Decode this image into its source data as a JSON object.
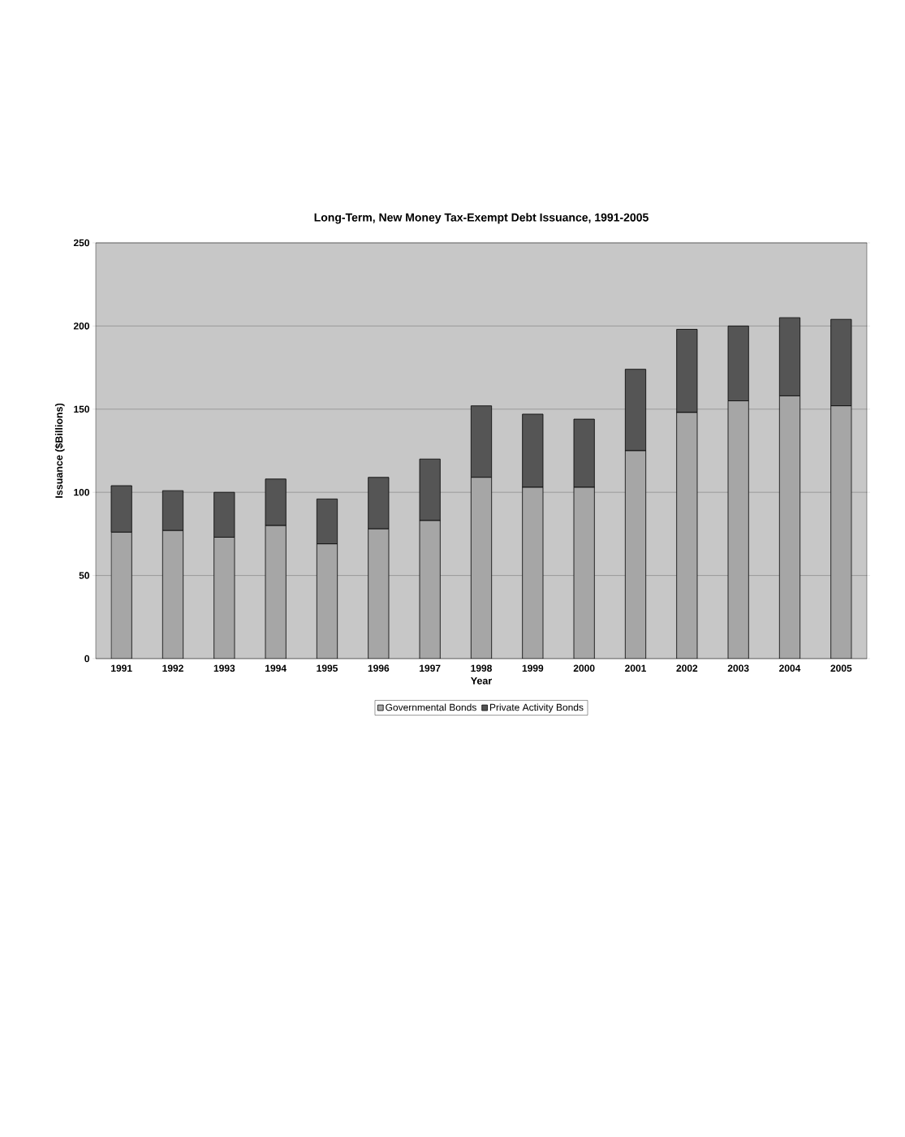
{
  "chart_data": {
    "type": "bar",
    "title": "Long-Term, New Money Tax-Exempt Debt Issuance, 1991-2005",
    "xlabel": "Year",
    "ylabel": "Issuance ($Billions)",
    "categories": [
      "1991",
      "1992",
      "1993",
      "1994",
      "1995",
      "1996",
      "1997",
      "1998",
      "1999",
      "2000",
      "2001",
      "2002",
      "2003",
      "2004",
      "2005"
    ],
    "series": [
      {
        "name": "Governmental Bonds",
        "color": "#a6a6a6",
        "values": [
          76,
          77,
          73,
          80,
          69,
          78,
          83,
          109,
          103,
          103,
          125,
          148,
          155,
          158,
          152
        ]
      },
      {
        "name": "Private Activity Bonds",
        "color": "#555555",
        "values": [
          28,
          24,
          27,
          28,
          27,
          31,
          37,
          43,
          44,
          41,
          49,
          50,
          45,
          47,
          52
        ]
      }
    ],
    "stacked": true,
    "ylim": [
      0,
      250
    ],
    "yticks": [
      0,
      50,
      100,
      150,
      200,
      250
    ],
    "grid": "y",
    "legend": "bottom"
  }
}
